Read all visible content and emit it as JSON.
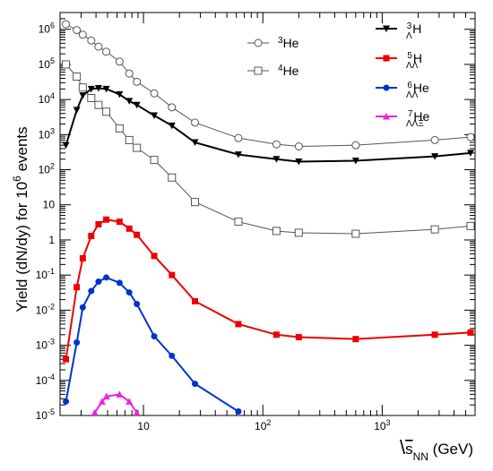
{
  "chart_data": {
    "type": "line",
    "title": "",
    "xlabel_prefix": "\\",
    "xlabel_root": "s",
    "xlabel_sub": "NN",
    "xlabel_unit": " (GeV)",
    "ylabel": "Yield (dN/dy) for 10",
    "ylabel_sup": "6",
    "ylabel_tail": " events",
    "x_scale": "log",
    "y_scale": "log",
    "xlim": [
      2.0,
      6000
    ],
    "ylim": [
      1e-05,
      3000000.0
    ],
    "grid": false,
    "x_ticks": [
      {
        "value": 10,
        "label": "10"
      },
      {
        "value": 100,
        "label": "10",
        "sup": "2"
      },
      {
        "value": 1000,
        "label": "10",
        "sup": "3"
      }
    ],
    "y_ticks": [
      {
        "value": 1000000.0,
        "label": "10",
        "sup": "6"
      },
      {
        "value": 100000.0,
        "label": "10",
        "sup": "5"
      },
      {
        "value": 10000.0,
        "label": "10",
        "sup": "4"
      },
      {
        "value": 1000.0,
        "label": "10",
        "sup": "3"
      },
      {
        "value": 100.0,
        "label": "10",
        "sup": "2"
      },
      {
        "value": 10,
        "label": "10"
      },
      {
        "value": 1,
        "label": "1"
      },
      {
        "value": 0.1,
        "label": "10",
        "sup": "-1"
      },
      {
        "value": 0.01,
        "label": "10",
        "sup": "-2"
      },
      {
        "value": 0.001,
        "label": "10",
        "sup": "-3"
      },
      {
        "value": 0.0001,
        "label": "10",
        "sup": "-4"
      },
      {
        "value": 1e-05,
        "label": "10",
        "sup": "-5"
      }
    ],
    "series": [
      {
        "name_sup": "3",
        "name_main": "He",
        "color": "#555555",
        "marker": "open-circle",
        "x": [
          2.24,
          2.76,
          3.1,
          3.65,
          4.2,
          4.88,
          6.3,
          7.6,
          8.8,
          12.3,
          17.3,
          27,
          62.4,
          130,
          200,
          600,
          2760,
          5500
        ],
        "y": [
          1400000,
          950000,
          700000,
          480000,
          320000,
          230000,
          120000,
          55000,
          32000,
          15000,
          6000,
          2200,
          800,
          530,
          460,
          500,
          700,
          850
        ]
      },
      {
        "name_sup": "4",
        "name_main": "He",
        "color": "#555555",
        "marker": "open-square",
        "x": [
          2.24,
          2.76,
          3.1,
          3.65,
          4.2,
          4.88,
          6.3,
          7.6,
          8.8,
          12.3,
          17.3,
          27,
          62.4,
          130,
          200,
          600,
          2760,
          5500
        ],
        "y": [
          100000,
          45000,
          22000,
          11000,
          7000,
          4500,
          1500,
          700,
          420,
          190,
          60,
          12,
          3.3,
          1.8,
          1.6,
          1.5,
          2,
          2.5
        ]
      },
      {
        "name_sup": "3",
        "name_sub": "Λ",
        "name_main": "H",
        "color": "#000000",
        "marker": "down-triangle",
        "x": [
          2.24,
          2.76,
          3.1,
          3.65,
          4.2,
          4.88,
          6.3,
          7.6,
          8.8,
          12.3,
          17.3,
          27,
          62.4,
          130,
          200,
          600,
          2760,
          5500
        ],
        "y": [
          500,
          5000,
          13000,
          20000,
          21000,
          20000,
          14000,
          9000,
          7000,
          3500,
          1800,
          600,
          270,
          200,
          170,
          180,
          240,
          300
        ]
      },
      {
        "name_sup": "5",
        "name_sub": "ΛΛ",
        "name_main": "H",
        "color": "#ee0000",
        "marker": "square",
        "x": [
          2.24,
          2.76,
          3.1,
          3.65,
          4.2,
          4.88,
          6.3,
          7.6,
          8.8,
          12.3,
          17.3,
          27,
          62.4,
          130,
          200,
          600,
          2760,
          5500
        ],
        "y": [
          0.0004,
          0.045,
          0.3,
          1.3,
          2.8,
          3.8,
          3.3,
          2.1,
          1.4,
          0.35,
          0.1,
          0.018,
          0.004,
          0.002,
          0.0017,
          0.0015,
          0.002,
          0.0023
        ]
      },
      {
        "name_sup": "6",
        "name_sub": "ΛΛ",
        "name_main": "He",
        "color": "#0033cc",
        "marker": "circle",
        "x": [
          2.24,
          2.76,
          3.1,
          3.65,
          4.2,
          4.88,
          6.3,
          7.6,
          8.8,
          12.3,
          17.3,
          27,
          62.4
        ],
        "y": [
          2.5e-05,
          0.0012,
          0.012,
          0.035,
          0.065,
          0.085,
          0.06,
          0.032,
          0.015,
          0.0018,
          0.0005,
          8e-05,
          1.3e-05
        ]
      },
      {
        "name_sup": "7",
        "name_sub": "ΛΛΞ",
        "name_main": "He",
        "color": "#ee22dd",
        "marker": "up-triangle",
        "x": [
          3.9,
          4.5,
          4.9,
          6.3,
          7.6,
          8.8
        ],
        "y": [
          1.2e-05,
          2.5e-05,
          3.5e-05,
          4e-05,
          2.5e-05,
          1.2e-05
        ]
      }
    ]
  }
}
